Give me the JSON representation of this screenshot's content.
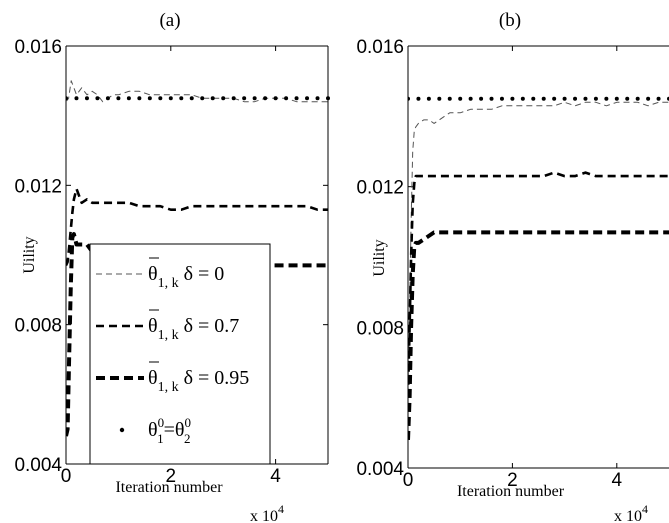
{
  "chart_data": [
    {
      "type": "line",
      "panel_label": "(a)",
      "xlabel": "Iteration number",
      "ylabel": "Uility",
      "x_multiplier": "x 10",
      "x_multiplier_exp": "4",
      "xlim": [
        0,
        50000
      ],
      "ylim": [
        0.004,
        0.016
      ],
      "xticks": [
        0,
        20000,
        40000
      ],
      "xtick_labels": [
        "0",
        "2",
        "4"
      ],
      "yticks": [
        0.004,
        0.008,
        0.012,
        0.016
      ],
      "ytick_labels": [
        "0.004",
        "0.008",
        "0.012",
        "0.016"
      ],
      "legend_position": "bottom-left",
      "legend": [
        {
          "base": "θ",
          "bar": true,
          "sub": "1, k",
          "sup": "",
          "suffix": "δ = 0",
          "style": "thin-dash"
        },
        {
          "base": "θ",
          "bar": true,
          "sub": "1, k",
          "sup": "",
          "suffix": "δ = 0.7",
          "style": "medium-dash"
        },
        {
          "base": "θ",
          "bar": true,
          "sub": "1, k",
          "sup": "",
          "suffix": "δ = 0.95",
          "style": "thick-dash"
        },
        {
          "base": "θ",
          "bar": false,
          "sub": "1",
          "sup": "0",
          "eq": "=θ",
          "sub2": "2",
          "sup2": "0",
          "style": "dots"
        }
      ],
      "series": [
        {
          "style": "thin-dash",
          "x": [
            0,
            500,
            1000,
            1500,
            2000,
            2500,
            3000,
            3500,
            4000,
            5000,
            6000,
            7000,
            8000,
            9000,
            10000,
            12000,
            14000,
            16000,
            18000,
            20000,
            22000,
            24000,
            26000,
            28000,
            30000,
            32000,
            34000,
            36000,
            38000,
            40000,
            42000,
            44000,
            46000,
            48000,
            50000
          ],
          "y": [
            0.0144,
            0.0145,
            0.015,
            0.0148,
            0.0146,
            0.0147,
            0.0148,
            0.0147,
            0.0146,
            0.0147,
            0.0146,
            0.0144,
            0.0145,
            0.0146,
            0.0146,
            0.0147,
            0.0147,
            0.0146,
            0.0146,
            0.0146,
            0.0146,
            0.0146,
            0.0145,
            0.0145,
            0.0145,
            0.0145,
            0.0144,
            0.0144,
            0.0145,
            0.0145,
            0.0145,
            0.0144,
            0.0144,
            0.0144,
            0.0144
          ]
        },
        {
          "style": "medium-dash",
          "x": [
            0,
            300,
            600,
            900,
            1200,
            1500,
            2000,
            2500,
            3000,
            4000,
            5000,
            6000,
            7000,
            8000,
            10000,
            12000,
            14000,
            16000,
            18000,
            20000,
            22000,
            24000,
            26000,
            28000,
            30000,
            32000,
            34000,
            36000,
            38000,
            40000,
            42000,
            44000,
            46000,
            48000,
            50000
          ],
          "y": [
            0.0097,
            0.0098,
            0.0102,
            0.0107,
            0.0112,
            0.0116,
            0.0119,
            0.0117,
            0.0115,
            0.0116,
            0.0115,
            0.0115,
            0.0115,
            0.0115,
            0.0115,
            0.0115,
            0.0114,
            0.0114,
            0.0114,
            0.0113,
            0.0113,
            0.0114,
            0.0114,
            0.0114,
            0.0114,
            0.0114,
            0.0114,
            0.0114,
            0.0114,
            0.0114,
            0.0114,
            0.0114,
            0.0114,
            0.0113,
            0.0113
          ]
        },
        {
          "style": "thick-dash",
          "x": [
            0,
            300,
            600,
            900,
            1200,
            1500,
            2000,
            2500,
            3000,
            4000,
            5000,
            6000,
            7000,
            8000,
            10000,
            12000,
            14000,
            16000,
            18000,
            20000,
            24000,
            28000,
            32000,
            36000,
            40000,
            44000,
            48000,
            50000
          ],
          "y": [
            0.0048,
            0.005,
            0.007,
            0.009,
            0.0105,
            0.0106,
            0.0103,
            0.0103,
            0.0103,
            0.0103,
            0.0101,
            0.0099,
            0.0098,
            0.0098,
            0.0098,
            0.0098,
            0.0098,
            0.0097,
            0.0097,
            0.0097,
            0.0097,
            0.0097,
            0.0097,
            0.0097,
            0.0097,
            0.0097,
            0.0097,
            0.0097
          ]
        },
        {
          "style": "dots",
          "x": [
            0,
            2000,
            4000,
            6000,
            8000,
            10000,
            12000,
            14000,
            16000,
            18000,
            20000,
            22000,
            24000,
            26000,
            28000,
            30000,
            32000,
            34000,
            36000,
            38000,
            40000,
            42000,
            44000,
            46000,
            48000,
            50000
          ],
          "y": [
            0.0145,
            0.0145,
            0.0145,
            0.0145,
            0.0145,
            0.0145,
            0.0145,
            0.0145,
            0.0145,
            0.0145,
            0.0145,
            0.0145,
            0.0145,
            0.0145,
            0.0145,
            0.0145,
            0.0145,
            0.0145,
            0.0145,
            0.0145,
            0.0145,
            0.0145,
            0.0145,
            0.0145,
            0.0145,
            0.0145
          ]
        }
      ]
    },
    {
      "type": "line",
      "panel_label": "(b)",
      "xlabel": "Iteration number",
      "ylabel": "Uility",
      "x_multiplier": "x 10",
      "x_multiplier_exp": "4",
      "xlim": [
        0,
        50000
      ],
      "ylim": [
        0.004,
        0.016
      ],
      "xticks": [
        0,
        20000,
        40000
      ],
      "xtick_labels": [
        "0",
        "2",
        "4"
      ],
      "yticks": [
        0.004,
        0.008,
        0.012,
        0.016
      ],
      "ytick_labels": [
        "0.004",
        "0.008",
        "0.012",
        "0.016"
      ],
      "series": [
        {
          "style": "thin-dash",
          "x": [
            0,
            300,
            600,
            900,
            1200,
            1500,
            2000,
            3000,
            4000,
            5000,
            6000,
            7000,
            8000,
            10000,
            12000,
            14000,
            16000,
            18000,
            20000,
            22000,
            24000,
            26000,
            28000,
            30000,
            32000,
            34000,
            36000,
            38000,
            40000,
            42000,
            44000,
            46000,
            48000,
            50000
          ],
          "y": [
            0.006,
            0.0085,
            0.011,
            0.013,
            0.0136,
            0.0137,
            0.0138,
            0.0139,
            0.0139,
            0.0138,
            0.0139,
            0.014,
            0.0141,
            0.0141,
            0.0142,
            0.0142,
            0.0142,
            0.0143,
            0.0143,
            0.0143,
            0.0143,
            0.0143,
            0.0143,
            0.0144,
            0.0143,
            0.0144,
            0.0144,
            0.0143,
            0.0144,
            0.0144,
            0.0144,
            0.0143,
            0.0144,
            0.0144
          ]
        },
        {
          "style": "medium-dash",
          "x": [
            0,
            300,
            600,
            900,
            1200,
            1500,
            2000,
            3000,
            4000,
            6000,
            8000,
            10000,
            12000,
            14000,
            16000,
            18000,
            20000,
            22000,
            24000,
            26000,
            28000,
            30000,
            32000,
            34000,
            36000,
            38000,
            40000,
            42000,
            44000,
            46000,
            48000,
            50000
          ],
          "y": [
            0.006,
            0.008,
            0.01,
            0.0115,
            0.0121,
            0.0123,
            0.0123,
            0.0123,
            0.0123,
            0.0123,
            0.0123,
            0.0123,
            0.0123,
            0.0123,
            0.0123,
            0.0123,
            0.0123,
            0.0123,
            0.0123,
            0.0123,
            0.0124,
            0.0123,
            0.0123,
            0.0124,
            0.0123,
            0.0123,
            0.0123,
            0.0123,
            0.0123,
            0.0123,
            0.0123,
            0.0123
          ]
        },
        {
          "style": "thick-dash",
          "x": [
            0,
            300,
            600,
            900,
            1200,
            1500,
            2000,
            3000,
            4000,
            5000,
            6000,
            8000,
            10000,
            12000,
            14000,
            16000,
            18000,
            20000,
            24000,
            28000,
            32000,
            36000,
            40000,
            44000,
            48000,
            50000
          ],
          "y": [
            0.0048,
            0.006,
            0.008,
            0.0095,
            0.0103,
            0.0104,
            0.0104,
            0.0105,
            0.0106,
            0.0107,
            0.0107,
            0.0107,
            0.0107,
            0.0107,
            0.0107,
            0.0107,
            0.0107,
            0.0107,
            0.0107,
            0.0107,
            0.0107,
            0.0107,
            0.0107,
            0.0107,
            0.0107,
            0.0107
          ]
        },
        {
          "style": "dots",
          "x": [
            0,
            2000,
            4000,
            6000,
            8000,
            10000,
            12000,
            14000,
            16000,
            18000,
            20000,
            22000,
            24000,
            26000,
            28000,
            30000,
            32000,
            34000,
            36000,
            38000,
            40000,
            42000,
            44000,
            46000,
            48000,
            50000
          ],
          "y": [
            0.0145,
            0.0145,
            0.0145,
            0.0145,
            0.0145,
            0.0145,
            0.0145,
            0.0145,
            0.0145,
            0.0145,
            0.0145,
            0.0145,
            0.0145,
            0.0145,
            0.0145,
            0.0145,
            0.0145,
            0.0145,
            0.0145,
            0.0145,
            0.0145,
            0.0145,
            0.0145,
            0.0145,
            0.0145,
            0.0145
          ]
        }
      ]
    }
  ]
}
